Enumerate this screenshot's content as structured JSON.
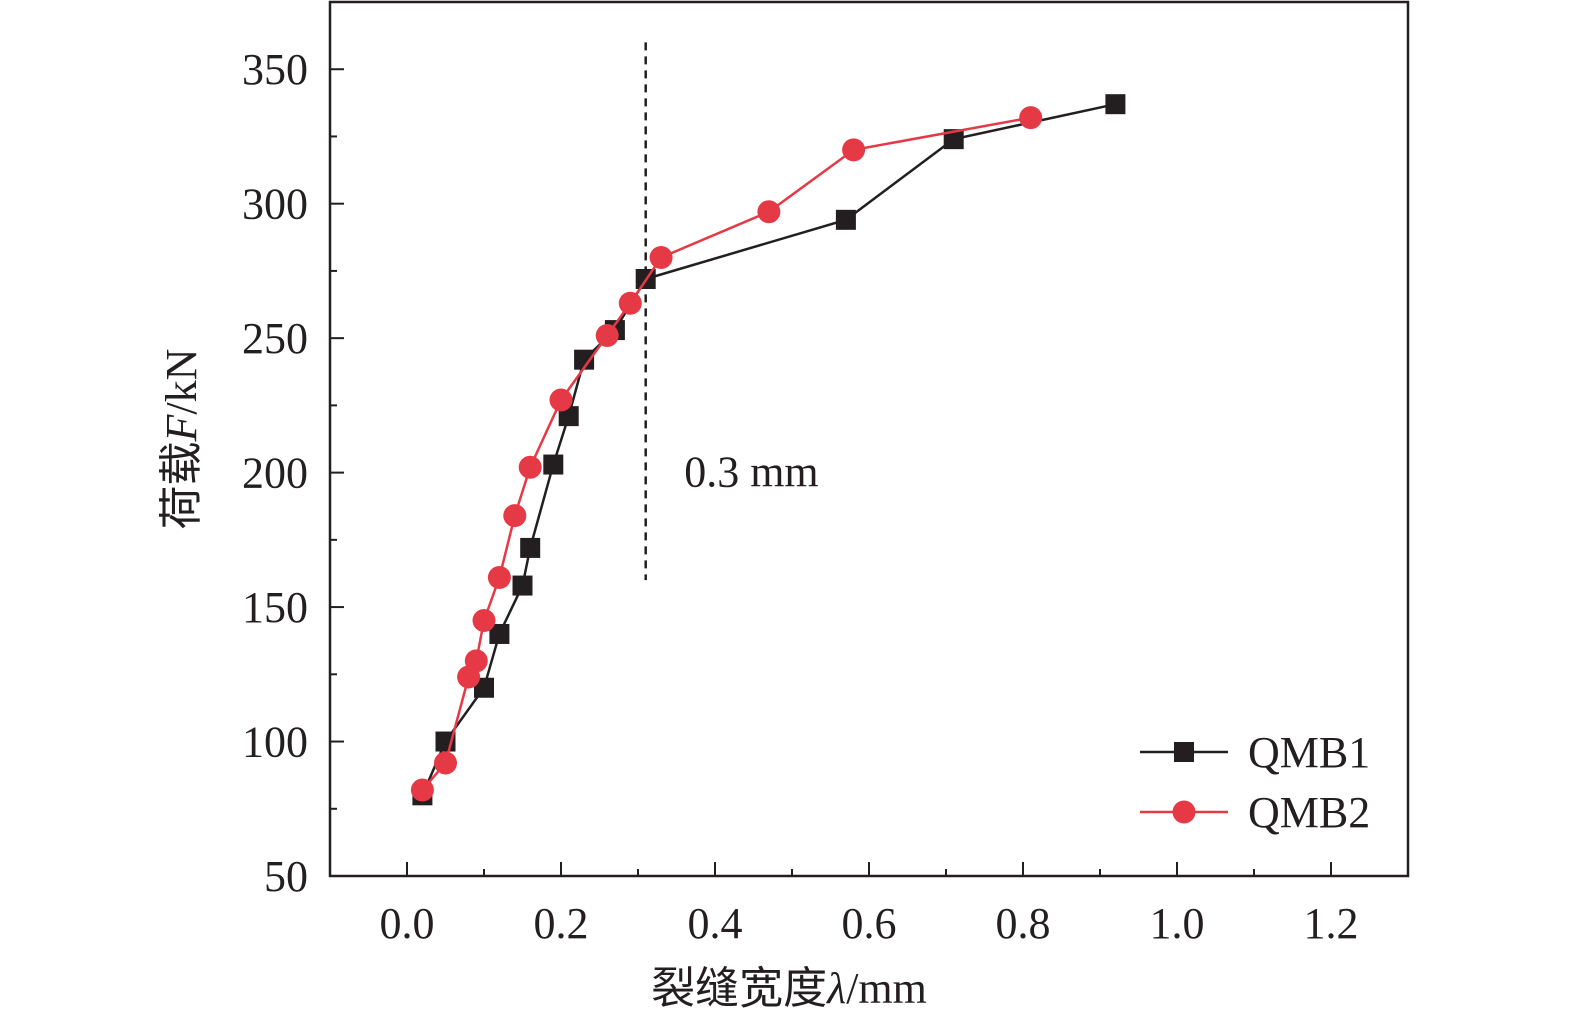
{
  "chart_data": {
    "type": "line",
    "title": "",
    "xlabel": {
      "prefix": "裂缝宽度",
      "symbol": "λ",
      "suffix": "/mm"
    },
    "ylabel": {
      "prefix": "荷载",
      "symbol": "F",
      "suffix": "/kN"
    },
    "xlim": [
      -0.1,
      1.3
    ],
    "ylim": [
      50,
      375
    ],
    "x_ticks": [
      0.0,
      0.2,
      0.4,
      0.6,
      0.8,
      1.0,
      1.2
    ],
    "x_tick_labels": [
      "0.0",
      "0.2",
      "0.4",
      "0.6",
      "0.8",
      "1.0",
      "1.2"
    ],
    "y_ticks": [
      50,
      100,
      150,
      200,
      250,
      300,
      350
    ],
    "y_tick_labels": [
      "50",
      "100",
      "150",
      "200",
      "250",
      "300",
      "350"
    ],
    "grid": false,
    "legend_position": "bottom-right",
    "series": [
      {
        "name": "QMB1",
        "marker": "square",
        "color": "#231f20",
        "x": [
          0.02,
          0.05,
          0.1,
          0.12,
          0.15,
          0.16,
          0.19,
          0.21,
          0.23,
          0.27,
          0.31,
          0.57,
          0.71,
          0.92
        ],
        "y": [
          80,
          100,
          120,
          140,
          158,
          172,
          203,
          221,
          242,
          253,
          272,
          294,
          324,
          337
        ]
      },
      {
        "name": "QMB2",
        "marker": "circle",
        "color": "#e63946",
        "x": [
          0.02,
          0.05,
          0.08,
          0.09,
          0.1,
          0.12,
          0.14,
          0.16,
          0.2,
          0.26,
          0.29,
          0.33,
          0.47,
          0.58,
          0.81
        ],
        "y": [
          82,
          92,
          124,
          130,
          145,
          161,
          184,
          202,
          227,
          251,
          263,
          280,
          297,
          320,
          332
        ]
      }
    ],
    "reference_line": {
      "x": 0.31,
      "y_range": [
        160,
        360
      ],
      "style": "dashed"
    },
    "annotation": {
      "text": "0.3 mm",
      "x": 0.36,
      "y": 200
    }
  }
}
